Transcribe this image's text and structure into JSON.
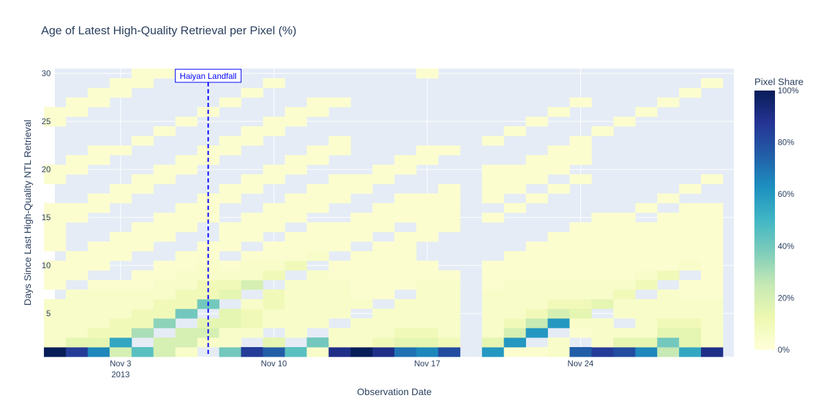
{
  "chart_data": {
    "type": "heatmap",
    "title": "Age of Latest High-Quality Retrieval per Pixel (%)",
    "xlabel": "Observation Date",
    "ylabel": "Days Since Last High-Quality NTL Retrieval",
    "x_start": "2013-10-31",
    "x_end": "2013-12-01",
    "x_tick_dates": [
      "2013-11-03",
      "2013-11-10",
      "2013-11-17",
      "2013-11-24"
    ],
    "x_tick_labels": [
      "Nov 3",
      "Nov 10",
      "Nov 17",
      "Nov 24"
    ],
    "x_tick_year": "2013",
    "y_ticks": [
      5,
      10,
      15,
      20,
      25,
      30
    ],
    "ylim": [
      0.5,
      30.5
    ],
    "colorscale": [
      "#ffffd9",
      "#edf8b1",
      "#c7e9b4",
      "#7fcdbb",
      "#41b6c4",
      "#1d91c0",
      "#225ea8",
      "#253494",
      "#081d58"
    ],
    "colorbar": {
      "title": "Pixel Share",
      "tick_labels": [
        "0%",
        "20%",
        "40%",
        "60%",
        "80%",
        "100%"
      ],
      "tick_values": [
        0,
        20,
        40,
        60,
        80,
        100
      ]
    },
    "annotation": {
      "date": "2013-11-07",
      "label": "Haiyan Landfall",
      "color": "#0000ff"
    },
    "columns": [
      {
        "date": "2013-10-31",
        "values": {
          "1": 100,
          "2": 5,
          "3": 5,
          "4": 5,
          "5": 5,
          "6": 5,
          "8": 3,
          "9": 3,
          "10": 3,
          "12": 3,
          "13": 3,
          "14": 3,
          "15": 3,
          "16": 3,
          "19": 3,
          "20": 3,
          "25": 3,
          "26": 3
        }
      },
      {
        "date": "2013-11-01",
        "values": {
          "1": 85,
          "2": 15,
          "3": 5,
          "4": 5,
          "5": 5,
          "6": 5,
          "7": 5,
          "9": 3,
          "10": 3,
          "11": 3,
          "15": 3,
          "16": 3,
          "20": 3,
          "21": 3,
          "26": 3,
          "27": 3
        }
      },
      {
        "date": "2013-11-02",
        "values": {
          "1": 65,
          "2": 15,
          "3": 10,
          "4": 5,
          "5": 5,
          "6": 5,
          "7": 5,
          "8": 3,
          "10": 3,
          "11": 3,
          "12": 3,
          "16": 3,
          "17": 3,
          "21": 3,
          "22": 3,
          "27": 3,
          "28": 3
        }
      },
      {
        "date": "2013-11-03",
        "values": {
          "1": 20,
          "2": 55,
          "3": 10,
          "4": 10,
          "5": 5,
          "6": 5,
          "7": 5,
          "8": 3,
          "11": 3,
          "12": 3,
          "13": 3,
          "17": 3,
          "18": 3,
          "22": 3,
          "28": 3,
          "29": 3
        }
      },
      {
        "date": "2013-11-04",
        "values": {
          "1": 45,
          "3": 30,
          "4": 10,
          "5": 10,
          "6": 5,
          "7": 5,
          "8": 3,
          "9": 3,
          "12": 3,
          "13": 3,
          "14": 3,
          "18": 3,
          "19": 3,
          "23": 3,
          "29": 3,
          "30": 3
        }
      },
      {
        "date": "2013-11-05",
        "values": {
          "1": 20,
          "2": 20,
          "4": 35,
          "5": 10,
          "6": 10,
          "7": 5,
          "8": 5,
          "9": 3,
          "10": 3,
          "13": 3,
          "14": 3,
          "15": 3,
          "19": 3,
          "20": 3,
          "24": 3,
          "30": 3
        }
      },
      {
        "date": "2013-11-06",
        "values": {
          "1": 5,
          "2": 20,
          "3": 20,
          "5": 40,
          "6": 10,
          "7": 10,
          "8": 5,
          "9": 5,
          "10": 3,
          "11": 3,
          "14": 3,
          "15": 3,
          "16": 3,
          "20": 3,
          "21": 3,
          "25": 3
        }
      },
      {
        "date": "2013-11-07",
        "values": {
          "2": 5,
          "3": 20,
          "4": 15,
          "6": 40,
          "7": 10,
          "8": 10,
          "9": 5,
          "10": 5,
          "11": 3,
          "12": 3,
          "15": 3,
          "16": 3,
          "17": 3,
          "21": 3,
          "22": 3,
          "26": 3
        }
      },
      {
        "date": "2013-11-08",
        "values": {
          "1": 40,
          "2": 5,
          "3": 5,
          "4": 15,
          "5": 15,
          "7": 15,
          "8": 10,
          "9": 5,
          "10": 3,
          "12": 3,
          "13": 3,
          "14": 3,
          "17": 3,
          "18": 3,
          "22": 3,
          "23": 3,
          "27": 3
        }
      },
      {
        "date": "2013-11-09",
        "values": {
          "1": 85,
          "3": 5,
          "4": 10,
          "5": 10,
          "6": 5,
          "8": 20,
          "9": 5,
          "10": 5,
          "11": 3,
          "13": 3,
          "14": 3,
          "15": 3,
          "18": 3,
          "19": 3,
          "23": 3,
          "24": 3,
          "28": 3
        }
      },
      {
        "date": "2013-11-10",
        "values": {
          "1": 75,
          "2": 15,
          "4": 5,
          "5": 5,
          "6": 10,
          "7": 10,
          "9": 10,
          "10": 5,
          "11": 3,
          "12": 3,
          "14": 3,
          "15": 3,
          "16": 3,
          "19": 3,
          "20": 3,
          "24": 3,
          "25": 3,
          "29": 3
        }
      },
      {
        "date": "2013-11-11",
        "values": {
          "1": 45,
          "3": 5,
          "4": 5,
          "5": 5,
          "6": 5,
          "7": 5,
          "8": 5,
          "10": 10,
          "11": 3,
          "12": 3,
          "13": 3,
          "15": 3,
          "16": 3,
          "17": 3,
          "20": 3,
          "21": 3,
          "25": 3,
          "26": 3
        }
      },
      {
        "date": "2013-11-12",
        "values": {
          "1": 5,
          "2": 40,
          "4": 5,
          "5": 5,
          "6": 5,
          "7": 5,
          "8": 5,
          "9": 5,
          "11": 5,
          "12": 3,
          "13": 3,
          "14": 3,
          "16": 3,
          "17": 3,
          "18": 3,
          "21": 3,
          "22": 3,
          "26": 3,
          "27": 3
        }
      },
      {
        "date": "2013-11-13",
        "values": {
          "1": 90,
          "2": 5,
          "3": 5,
          "5": 5,
          "6": 5,
          "7": 5,
          "8": 5,
          "9": 3,
          "10": 3,
          "12": 3,
          "13": 3,
          "14": 3,
          "17": 3,
          "18": 3,
          "19": 3,
          "22": 3,
          "23": 3,
          "27": 3
        }
      },
      {
        "date": "2013-11-14",
        "values": {
          "1": 100,
          "2": 5,
          "3": 5,
          "4": 5,
          "6": 5,
          "7": 3,
          "8": 3,
          "9": 3,
          "10": 3,
          "11": 3,
          "13": 3,
          "14": 3,
          "15": 3,
          "18": 3,
          "19": 3
        }
      },
      {
        "date": "2013-11-15",
        "values": {
          "1": 90,
          "2": 10,
          "3": 5,
          "4": 5,
          "5": 5,
          "7": 3,
          "8": 3,
          "9": 3,
          "10": 3,
          "11": 3,
          "12": 3,
          "14": 3,
          "15": 3,
          "16": 3,
          "19": 3,
          "20": 3
        }
      },
      {
        "date": "2013-11-16",
        "values": {
          "1": 70,
          "2": 15,
          "3": 10,
          "4": 5,
          "5": 5,
          "6": 5,
          "8": 3,
          "9": 3,
          "10": 3,
          "11": 3,
          "12": 3,
          "13": 3,
          "15": 3,
          "16": 3,
          "17": 3,
          "20": 3,
          "21": 3
        }
      },
      {
        "date": "2013-11-17",
        "values": {
          "1": 65,
          "2": 15,
          "3": 10,
          "4": 5,
          "5": 5,
          "6": 5,
          "7": 5,
          "8": 5,
          "9": 3,
          "10": 3,
          "13": 3,
          "14": 3,
          "15": 3,
          "16": 3,
          "17": 3,
          "21": 3,
          "22": 3,
          "30": 3
        }
      },
      {
        "date": "2013-11-18",
        "values": {
          "1": 80,
          "2": 10,
          "3": 5,
          "4": 5,
          "5": 5,
          "6": 5,
          "7": 5,
          "8": 5,
          "9": 3,
          "14": 3,
          "15": 3,
          "16": 3,
          "17": 3,
          "18": 3,
          "22": 3
        }
      },
      {
        "date": "2013-11-20",
        "values": {
          "1": 60,
          "2": 15,
          "3": 5,
          "4": 5,
          "5": 5,
          "6": 5,
          "7": 5,
          "8": 3,
          "9": 3,
          "10": 3,
          "15": 3,
          "17": 3,
          "18": 3,
          "19": 3,
          "20": 3,
          "23": 3
        }
      },
      {
        "date": "2013-11-21",
        "values": {
          "1": 3,
          "2": 60,
          "3": 20,
          "4": 10,
          "5": 5,
          "6": 5,
          "7": 5,
          "8": 5,
          "9": 3,
          "10": 3,
          "11": 3,
          "16": 3,
          "18": 3,
          "19": 3,
          "20": 3,
          "24": 3
        }
      },
      {
        "date": "2013-11-22",
        "values": {
          "1": 3,
          "3": 60,
          "4": 25,
          "5": 10,
          "6": 5,
          "7": 5,
          "8": 5,
          "9": 3,
          "10": 3,
          "11": 3,
          "12": 3,
          "17": 3,
          "19": 3,
          "20": 3,
          "21": 3,
          "25": 3
        }
      },
      {
        "date": "2013-11-23",
        "values": {
          "1": 5,
          "2": 5,
          "4": 60,
          "5": 20,
          "6": 10,
          "7": 5,
          "8": 5,
          "9": 3,
          "10": 3,
          "11": 3,
          "12": 3,
          "13": 3,
          "18": 3,
          "20": 3,
          "21": 3,
          "22": 3,
          "26": 3
        }
      },
      {
        "date": "2013-11-24",
        "values": {
          "1": 75,
          "3": 3,
          "4": 5,
          "5": 15,
          "6": 10,
          "7": 5,
          "8": 5,
          "9": 3,
          "10": 3,
          "11": 3,
          "12": 3,
          "13": 3,
          "14": 3,
          "19": 3,
          "21": 3,
          "22": 3,
          "23": 3,
          "27": 3
        }
      },
      {
        "date": "2013-11-25",
        "values": {
          "1": 85,
          "2": 5,
          "3": 5,
          "4": 5,
          "6": 15,
          "7": 5,
          "8": 5,
          "9": 3,
          "10": 3,
          "11": 3,
          "12": 3,
          "13": 3,
          "14": 3,
          "15": 3,
          "24": 3
        }
      },
      {
        "date": "2013-11-26",
        "values": {
          "1": 80,
          "2": 15,
          "3": 5,
          "5": 5,
          "6": 5,
          "7": 10,
          "8": 5,
          "9": 3,
          "10": 3,
          "11": 3,
          "12": 3,
          "13": 3,
          "14": 3,
          "15": 3,
          "25": 3
        }
      },
      {
        "date": "2013-11-27",
        "values": {
          "1": 65,
          "2": 15,
          "3": 5,
          "4": 5,
          "5": 5,
          "6": 5,
          "8": 10,
          "9": 5,
          "10": 3,
          "11": 3,
          "12": 3,
          "13": 3,
          "14": 3,
          "16": 3,
          "26": 3
        }
      },
      {
        "date": "2013-11-28",
        "values": {
          "1": 25,
          "2": 40,
          "3": 15,
          "4": 10,
          "5": 5,
          "6": 5,
          "7": 5,
          "9": 10,
          "10": 3,
          "11": 3,
          "12": 3,
          "13": 3,
          "14": 3,
          "15": 3,
          "17": 3,
          "27": 3
        }
      },
      {
        "date": "2013-11-29",
        "values": {
          "1": 55,
          "2": 15,
          "3": 15,
          "4": 10,
          "5": 5,
          "6": 5,
          "7": 3,
          "8": 3,
          "10": 5,
          "11": 3,
          "12": 3,
          "13": 3,
          "14": 3,
          "15": 3,
          "16": 3,
          "18": 3,
          "28": 3
        }
      },
      {
        "date": "2013-11-30",
        "values": {
          "1": 90,
          "2": 5,
          "3": 5,
          "4": 5,
          "5": 5,
          "6": 5,
          "7": 3,
          "8": 3,
          "9": 3,
          "10": 3,
          "11": 3,
          "12": 3,
          "13": 3,
          "14": 3,
          "15": 3,
          "16": 3,
          "19": 3,
          "29": 3
        }
      }
    ]
  }
}
